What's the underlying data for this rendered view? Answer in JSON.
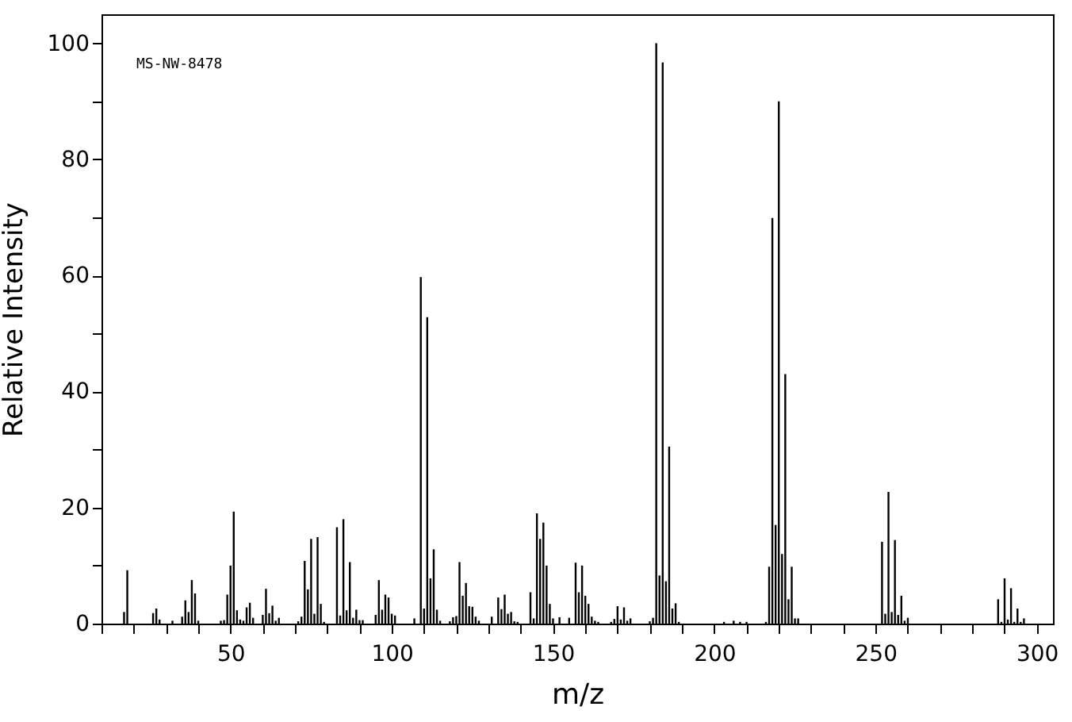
{
  "chart_data": {
    "type": "bar",
    "xlabel": "m/z",
    "ylabel": "Relative Intensity",
    "annotations": [
      "MS-NW-8478"
    ],
    "x": [
      17,
      18,
      26,
      27,
      28,
      32,
      35,
      36,
      37,
      38,
      39,
      40,
      47,
      48,
      49,
      50,
      51,
      52,
      53,
      54,
      55,
      56,
      57,
      60,
      61,
      62,
      63,
      64,
      65,
      71,
      72,
      73,
      74,
      75,
      76,
      77,
      78,
      79,
      83,
      84,
      85,
      86,
      87,
      88,
      89,
      90,
      91,
      95,
      96,
      97,
      98,
      99,
      100,
      101,
      107,
      109,
      110,
      111,
      112,
      113,
      114,
      115,
      118,
      119,
      120,
      121,
      122,
      123,
      124,
      125,
      126,
      127,
      131,
      133,
      134,
      135,
      136,
      137,
      138,
      139,
      143,
      144,
      145,
      146,
      147,
      148,
      149,
      150,
      152,
      155,
      157,
      158,
      159,
      160,
      161,
      162,
      163,
      164,
      168,
      169,
      170,
      171,
      172,
      173,
      174,
      180,
      181,
      182,
      183,
      184,
      185,
      186,
      187,
      188,
      189,
      203,
      206,
      208,
      210,
      216,
      217,
      218,
      219,
      220,
      221,
      222,
      223,
      224,
      225,
      226,
      252,
      253,
      254,
      255,
      256,
      257,
      258,
      259,
      260,
      288,
      289,
      290,
      291,
      292,
      293,
      294,
      295,
      296
    ],
    "values": [
      2,
      9.2,
      1.8,
      2.6,
      0.7,
      0.5,
      1.2,
      4,
      2,
      7.5,
      5.2,
      0.5,
      0.5,
      0.6,
      5,
      10,
      19.3,
      2.3,
      0.7,
      0.5,
      2.8,
      3.6,
      1,
      1.5,
      6,
      1.8,
      3.1,
      0.5,
      1,
      0.4,
      1.2,
      10.8,
      5.9,
      14.6,
      1.7,
      14.9,
      3.4,
      0.3,
      16.6,
      1.4,
      18,
      2.3,
      10.6,
      1,
      2.4,
      0.6,
      0.6,
      1.5,
      7.5,
      2.4,
      5,
      4.5,
      1.7,
      1.4,
      0.9,
      59.7,
      2.6,
      52.8,
      7.8,
      12.8,
      2.4,
      0.5,
      0.4,
      1.1,
      1.3,
      10.6,
      4.8,
      7,
      3,
      2.9,
      1.2,
      0.5,
      1.2,
      4.5,
      2.5,
      5,
      1.7,
      2,
      0.4,
      0.3,
      5.4,
      0.9,
      19,
      14.6,
      17.4,
      10,
      3.4,
      0.9,
      1.1,
      1,
      10.5,
      5.4,
      10,
      4.8,
      3.4,
      1.2,
      0.5,
      0.3,
      0.3,
      0.8,
      3,
      0.7,
      2.8,
      0.5,
      0.9,
      0.4,
      1,
      100,
      8.3,
      96.7,
      7.3,
      30.5,
      2.6,
      3.5,
      0.3,
      0.3,
      0.5,
      0.3,
      0.3,
      0.3,
      9.8,
      69.9,
      17,
      90,
      12,
      43,
      4.2,
      9.8,
      0.9,
      0.9,
      14.1,
      1.7,
      22.7,
      2,
      14.4,
      1.5,
      4.8,
      0.5,
      1,
      4.2,
      0.3,
      7.8,
      0.7,
      6.1,
      0.3,
      2.6,
      0.3,
      0.9
    ],
    "color": "#000000",
    "xlim": [
      10,
      305
    ],
    "ylim": [
      0,
      105
    ],
    "xticks": [
      {
        "value": 10,
        "label": null
      },
      {
        "value": 20,
        "label": null
      },
      {
        "value": 30,
        "label": null
      },
      {
        "value": 40,
        "label": null
      },
      50,
      {
        "value": 60,
        "label": null
      },
      {
        "value": 70,
        "label": null
      },
      {
        "value": 80,
        "label": null
      },
      {
        "value": 90,
        "label": null
      },
      100,
      {
        "value": 110,
        "label": null
      },
      {
        "value": 120,
        "label": null
      },
      {
        "value": 130,
        "label": null
      },
      {
        "value": 140,
        "label": null
      },
      150,
      {
        "value": 160,
        "label": null
      },
      {
        "value": 170,
        "label": null
      },
      {
        "value": 180,
        "label": null
      },
      {
        "value": 190,
        "label": null
      },
      200,
      {
        "value": 210,
        "label": null
      },
      {
        "value": 220,
        "label": null
      },
      {
        "value": 230,
        "label": null
      },
      {
        "value": 240,
        "label": null
      },
      250,
      {
        "value": 260,
        "label": null
      },
      {
        "value": 270,
        "label": null
      },
      {
        "value": 280,
        "label": null
      },
      {
        "value": 290,
        "label": null
      },
      300
    ],
    "yticks": [
      0,
      {
        "value": 10,
        "label": null
      },
      20,
      {
        "value": 30,
        "label": null
      },
      40,
      {
        "value": 50,
        "label": null
      },
      60,
      {
        "value": 70,
        "label": null
      },
      80,
      {
        "value": 90,
        "label": null
      },
      100
    ]
  }
}
